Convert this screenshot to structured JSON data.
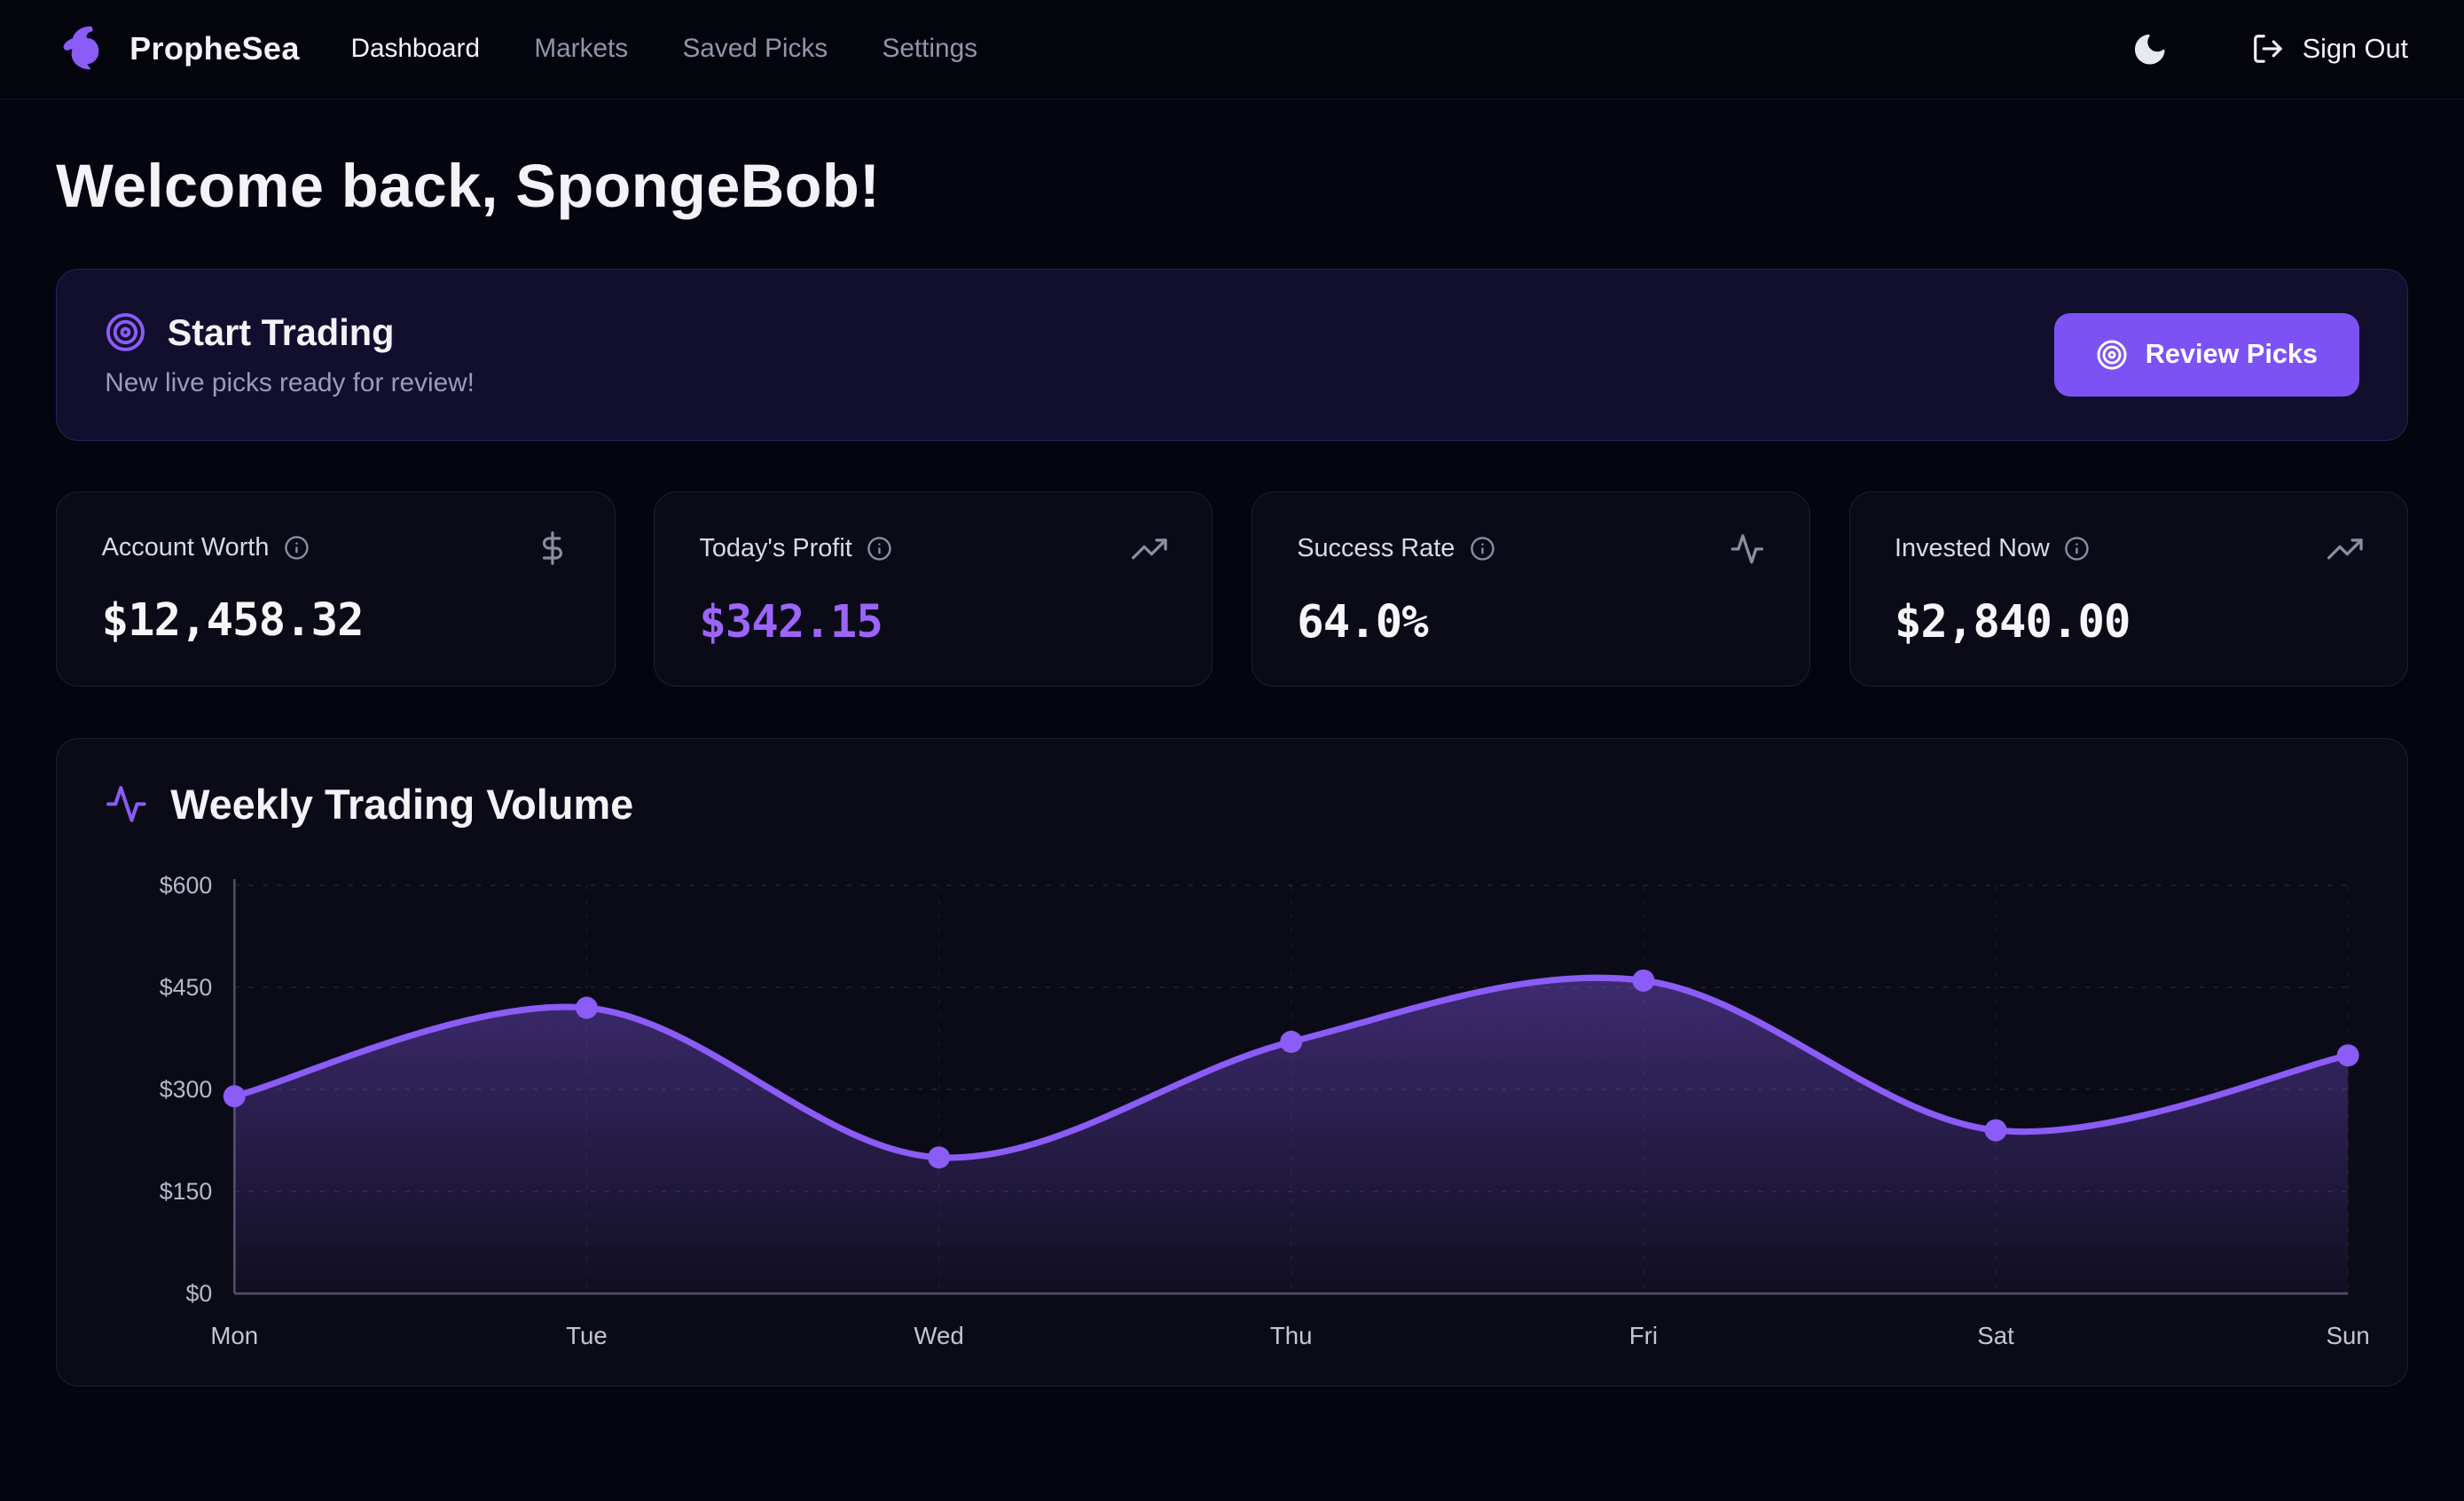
{
  "brand": {
    "name": "PropheSea"
  },
  "nav": {
    "items": [
      {
        "label": "Dashboard",
        "active": true
      },
      {
        "label": "Markets",
        "active": false
      },
      {
        "label": "Saved Picks",
        "active": false
      },
      {
        "label": "Settings",
        "active": false
      }
    ],
    "sign_out_label": "Sign Out"
  },
  "icons": {
    "logo": "seahorse-icon",
    "theme": "moon-icon",
    "sign_out": "logout-icon",
    "banner": "target-icon",
    "stat_1": "dollar-icon",
    "stat_2": "trending-up-icon",
    "stat_3": "activity-icon",
    "stat_4": "trending-up-icon",
    "chart": "activity-icon",
    "info": "info-icon"
  },
  "welcome": {
    "title": "Welcome back, SpongeBob!"
  },
  "banner": {
    "title": "Start Trading",
    "subtitle": "New live picks ready for review!",
    "button_label": "Review Picks"
  },
  "stats": [
    {
      "label": "Account Worth",
      "value": "$12,458.32"
    },
    {
      "label": "Today's Profit",
      "value": "$342.15"
    },
    {
      "label": "Success Rate",
      "value": "64.0%"
    },
    {
      "label": "Invested Now",
      "value": "$2,840.00"
    }
  ],
  "chart": {
    "title": "Weekly Trading Volume"
  },
  "chart_data": {
    "type": "area",
    "title": "Weekly Trading Volume",
    "categories": [
      "Mon",
      "Tue",
      "Wed",
      "Thu",
      "Fri",
      "Sat",
      "Sun"
    ],
    "values": [
      290,
      420,
      200,
      370,
      460,
      240,
      350
    ],
    "xlabel": "",
    "ylabel": "",
    "ylim": [
      0,
      600
    ],
    "yticks": [
      0,
      150,
      300,
      450,
      600
    ],
    "ytick_labels": [
      "$0",
      "$150",
      "$300",
      "$450",
      "$600"
    ],
    "grid": true,
    "legend": false,
    "line_color": "#8b5cf6",
    "fill_gradient": [
      "rgba(139,92,246,0.5)",
      "rgba(139,92,246,0.04)"
    ]
  },
  "colors": {
    "accent": "#8b5cf6",
    "button": "#7c52f5",
    "profit": "#9c64fb",
    "bg": "#050510",
    "panel": "#0b0b18"
  }
}
